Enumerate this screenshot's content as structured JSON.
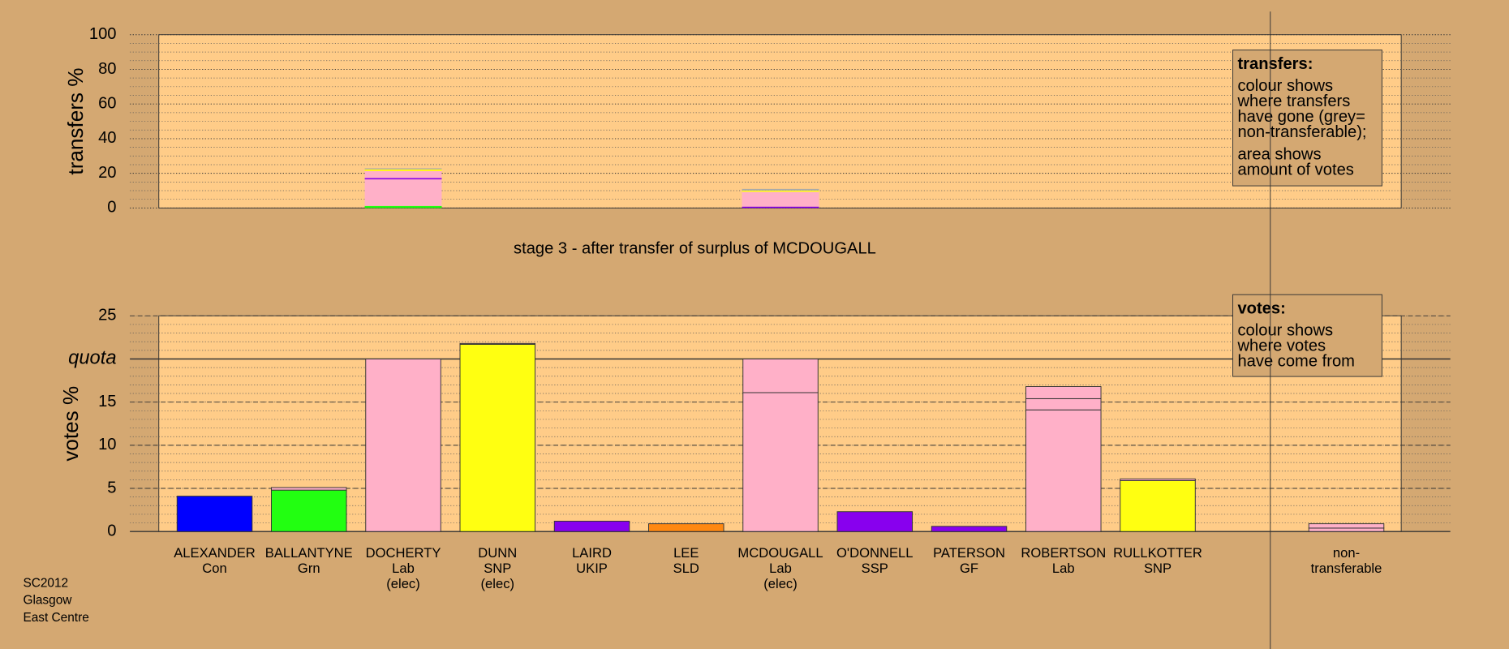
{
  "chart_data": [
    {
      "type": "bar",
      "stacked": true,
      "ylabel": "transfers %",
      "ylim": [
        0,
        100
      ],
      "yticks": [
        0,
        20,
        40,
        60,
        80,
        100
      ],
      "minor_grid": 5,
      "note_title": "transfers:",
      "note_paragraphs": [
        [
          "colour shows",
          "where transfers",
          "have gone (grey=",
          "non-transferable);"
        ],
        [
          "area shows",
          "amount of votes"
        ]
      ],
      "bars": [
        [],
        [],
        [
          {
            "value": 1.2,
            "color": "#22ff11"
          },
          {
            "value": 15.3,
            "color": "#ffb0c8"
          },
          {
            "value": 0.8,
            "color": "#8800ee"
          },
          {
            "value": 4.0,
            "color": "#ffb0c8"
          },
          {
            "value": 1.0,
            "color": "#ffff11"
          },
          {
            "value": 0.6,
            "color": "#aaaaaa"
          }
        ],
        [],
        [],
        [],
        [
          {
            "value": 0.8,
            "color": "#8800ee"
          },
          {
            "value": 8.5,
            "color": "#ffb0c8"
          },
          {
            "value": 0.8,
            "color": "#ffff11"
          },
          {
            "value": 0.9,
            "color": "#aaaaaa"
          }
        ],
        [],
        [],
        [],
        [],
        []
      ]
    },
    {
      "type": "bar",
      "stacked": true,
      "title": "stage 3 - after transfer of surplus of MCDOUGALL",
      "ylabel": "votes %",
      "ylim": [
        0,
        25
      ],
      "yticks": [
        0,
        5,
        10,
        15,
        {
          "value": 20,
          "label": "quota"
        },
        25
      ],
      "minor_grid": 1,
      "note_title": "votes:",
      "note_paragraphs": [
        [
          "colour shows",
          "where votes",
          "have come from"
        ]
      ],
      "categories": [
        [
          "ALEXANDER",
          "Con"
        ],
        [
          "BALLANTYNE",
          "Grn"
        ],
        [
          "DOCHERTY",
          "Lab",
          "(elec)"
        ],
        [
          "DUNN",
          "SNP",
          "(elec)"
        ],
        [
          "LAIRD",
          "UKIP"
        ],
        [
          "LEE",
          "SLD"
        ],
        [
          "MCDOUGALL",
          "Lab",
          "(elec)"
        ],
        [
          "O'DONNELL",
          "SSP"
        ],
        [
          "PATERSON",
          "GF"
        ],
        [
          "ROBERTSON",
          "Lab"
        ],
        [
          "RULLKOTTER",
          "SNP"
        ],
        [
          "non-",
          "transferable"
        ]
      ],
      "bars": [
        [
          {
            "value": 4.1,
            "color": "#0000ff"
          }
        ],
        [
          {
            "value": 4.8,
            "color": "#22ff11"
          },
          {
            "value": 0.3,
            "color": "#ffb0c8"
          }
        ],
        [
          {
            "value": 20,
            "color": "#ffb0c8"
          }
        ],
        [
          {
            "value": 21.7,
            "color": "#ffff11"
          },
          {
            "value": 0.1,
            "color": "#ffb0c8"
          }
        ],
        [
          {
            "value": 1.2,
            "color": "#8800ee"
          }
        ],
        [
          {
            "value": 0.9,
            "color": "#ff8811"
          }
        ],
        [
          {
            "value": 16.1,
            "color": "#ffb0c8"
          },
          {
            "value": 3.9,
            "color": "#ffb0c8"
          }
        ],
        [
          {
            "value": 2.3,
            "color": "#8800ee"
          }
        ],
        [
          {
            "value": 0.6,
            "color": "#8800ee"
          }
        ],
        [
          {
            "value": 14.1,
            "color": "#ffb0c8"
          },
          {
            "value": 1.3,
            "color": "#ffb0c8"
          },
          {
            "value": 1.4,
            "color": "#ffb0c8"
          }
        ],
        [
          {
            "value": 5.9,
            "color": "#ffff11"
          },
          {
            "value": 0.2,
            "color": "#ffb0c8"
          }
        ],
        [
          {
            "value": 0.4,
            "color": "#ffb0c8"
          },
          {
            "value": 0.5,
            "color": "#ffb0c8"
          }
        ]
      ]
    }
  ],
  "footer": [
    "SC2012",
    "Glasgow",
    "East Centre"
  ]
}
